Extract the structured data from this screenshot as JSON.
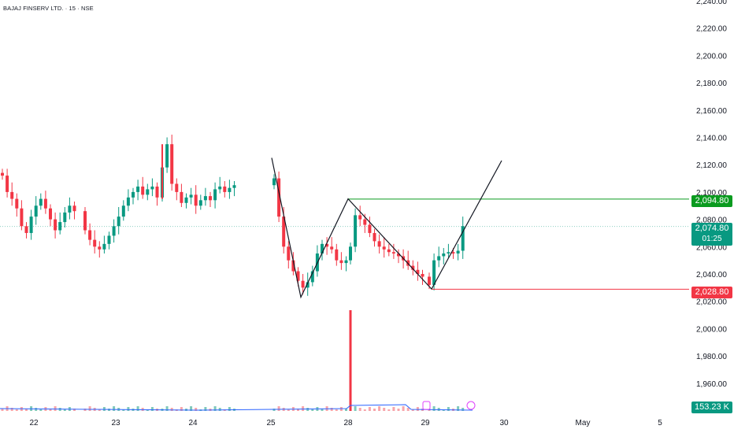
{
  "header": {
    "title": "BAJAJ FINSERV LTD. · 15 · NSE"
  },
  "price_axis": {
    "ticks": [
      "2,240.00",
      "2,220.00",
      "2,200.00",
      "2,180.00",
      "2,160.00",
      "2,140.00",
      "2,120.00",
      "2,100.00",
      "2,080.00",
      "2,060.00",
      "2,040.00",
      "2,020.00",
      "2,000.00",
      "1,980.00",
      "1,960.00"
    ],
    "tick_values": [
      2240,
      2220,
      2200,
      2180,
      2160,
      2140,
      2120,
      2100,
      2080,
      2060,
      2040,
      2020,
      2000,
      1980,
      1960
    ]
  },
  "time_axis": {
    "labels": [
      "22",
      "23",
      "24",
      "25",
      "28",
      "29",
      "30",
      "May",
      "5"
    ]
  },
  "badges": {
    "resistance": "2,094.80",
    "last_price": "2,074.80",
    "countdown": "01:25",
    "support": "2,028.80",
    "volume": "153.23 K"
  },
  "colors": {
    "up": "#089981",
    "down": "#f23645",
    "resistance_line": "#0a9b1f",
    "support_line": "#f23645",
    "pattern_line": "#131722",
    "volume_ma": "#2962ff"
  },
  "chart_data": {
    "type": "candlestick",
    "title": "BAJAJ FINSERV LTD. · 15 · NSE",
    "ylim": [
      1955,
      2245
    ],
    "sessions": [
      "22",
      "23",
      "24",
      "25",
      "28",
      "29"
    ],
    "horizontal_levels": [
      {
        "name": "resistance",
        "value": 2094.8
      },
      {
        "name": "support",
        "value": 2028.8
      }
    ],
    "last_price": 2074.8,
    "pattern_points": [
      {
        "session": "25",
        "bar": 0,
        "price": 2125
      },
      {
        "session": "25",
        "bar": 11,
        "price": 2023
      },
      {
        "session": "28",
        "bar": 0,
        "price": 2095
      },
      {
        "session": "29",
        "bar": 0,
        "price": 2029
      },
      {
        "session": "30",
        "bar": 7,
        "price": 2123
      }
    ],
    "sample_closes": {
      "22": [
        2112,
        2100,
        2095,
        2088,
        2075,
        2070,
        2082,
        2090,
        2095,
        2088,
        2080,
        2072,
        2078,
        2085,
        2090,
        2086
      ],
      "23": [
        2072,
        2065,
        2060,
        2058,
        2062,
        2068,
        2075,
        2082,
        2090,
        2096,
        2100,
        2104,
        2098,
        2102,
        2104,
        2096
      ],
      "24": [
        2118,
        2135,
        2106,
        2100,
        2092,
        2096,
        2098,
        2090,
        2094,
        2097,
        2094,
        2102,
        2104,
        2100,
        2103,
        2105
      ],
      "25": [
        2110,
        2082,
        2060,
        2050,
        2042,
        2035,
        2030,
        2034,
        2042,
        2055,
        2062,
        2060,
        2058,
        2050,
        2048,
        2050
      ],
      "28": [
        2060,
        2083,
        2080,
        2076,
        2070,
        2064,
        2060,
        2058,
        2056,
        2055,
        2053,
        2050,
        2046,
        2043,
        2040,
        2038
      ],
      "29": [
        2032,
        2050,
        2053,
        2055,
        2056,
        2055,
        2057,
        2075
      ]
    },
    "volume_spike": {
      "session": "28",
      "bar": 0
    }
  }
}
